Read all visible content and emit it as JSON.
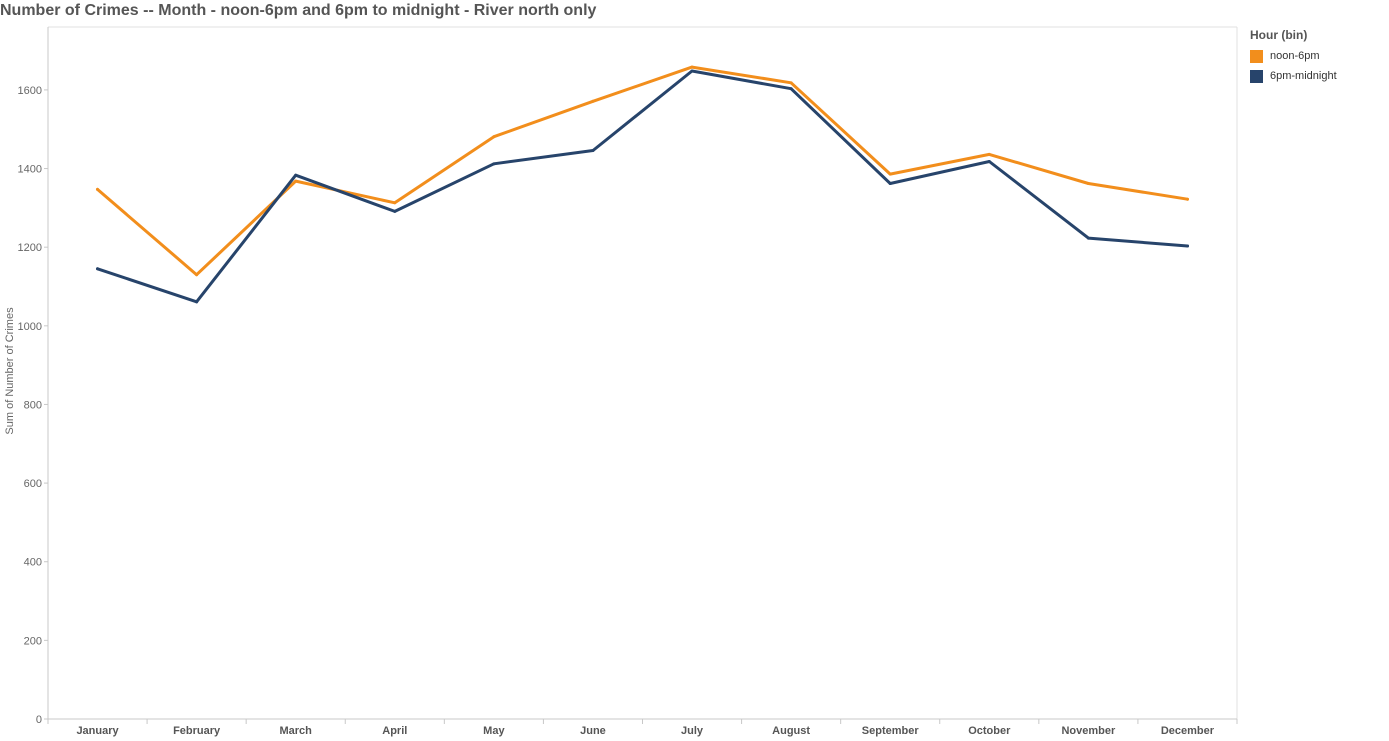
{
  "chart_data": {
    "type": "line",
    "title": "Number of Crimes -- Month - noon-6pm and 6pm to midnight - River north only",
    "xlabel": "",
    "ylabel": "Sum of Number of Crimes",
    "categories": [
      "January",
      "February",
      "March",
      "April",
      "May",
      "June",
      "July",
      "August",
      "September",
      "October",
      "November",
      "December"
    ],
    "ylim": [
      0,
      1760
    ],
    "yticks": [
      0,
      200,
      400,
      600,
      800,
      1000,
      1200,
      1400,
      1600
    ],
    "grid": false,
    "legend_title": "Hour (bin)",
    "legend_position": "right",
    "series": [
      {
        "name": "noon-6pm",
        "color": "#f28e1c",
        "values": [
          1347,
          1130,
          1368,
          1313,
          1481,
          1571,
          1658,
          1618,
          1386,
          1436,
          1362,
          1322
        ]
      },
      {
        "name": "6pm-midnight",
        "color": "#27446b",
        "values": [
          1145,
          1061,
          1383,
          1291,
          1412,
          1446,
          1648,
          1603,
          1362,
          1418,
          1223,
          1203
        ]
      }
    ]
  }
}
